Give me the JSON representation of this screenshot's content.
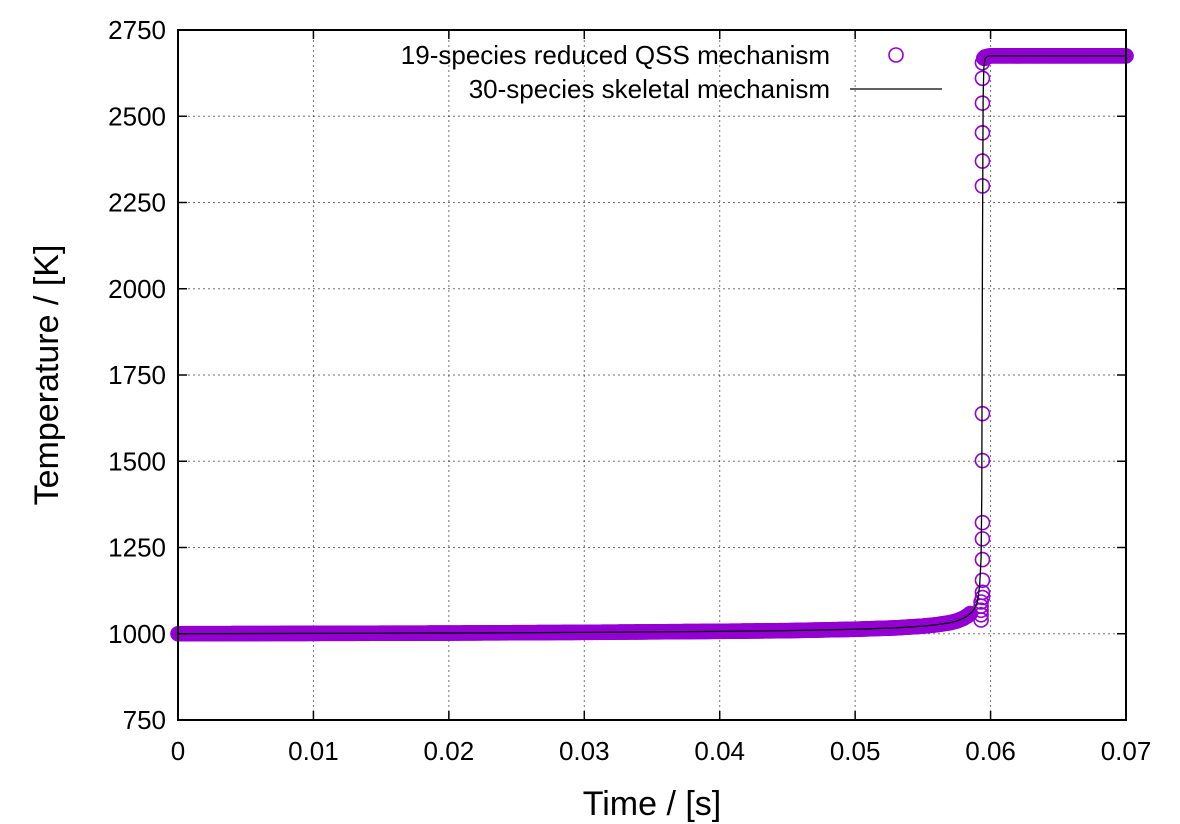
{
  "chart_data": {
    "type": "line",
    "xlabel": "Time / [s]",
    "ylabel": "Temperature / [K]",
    "xlim": [
      0,
      0.07
    ],
    "ylim": [
      750,
      2750
    ],
    "xticks": [
      0,
      0.01,
      0.02,
      0.03,
      0.04,
      0.05,
      0.06,
      0.07
    ],
    "xtick_labels": [
      "0",
      "0.01",
      "0.02",
      "0.03",
      "0.04",
      "0.05",
      "0.06",
      "0.07"
    ],
    "yticks": [
      750,
      1000,
      1250,
      1500,
      1750,
      2000,
      2250,
      2500,
      2750
    ],
    "ytick_labels": [
      "750",
      "1000",
      "1250",
      "1500",
      "1750",
      "2000",
      "2250",
      "2500",
      "2750"
    ],
    "grid": true,
    "legend_position": "top-right",
    "series": [
      {
        "name": "19-species reduced QSS mechanism",
        "style": "open-circle",
        "color": "#9400d3",
        "points": [
          [
            0.0593,
            1040
          ],
          [
            0.0593,
            1055
          ],
          [
            0.0593,
            1068
          ],
          [
            0.0593,
            1080
          ],
          [
            0.0593,
            1092
          ],
          [
            0.0594,
            1105
          ],
          [
            0.0594,
            1120
          ],
          [
            0.0594,
            1155
          ],
          [
            0.0594,
            1215
          ],
          [
            0.0594,
            1275
          ],
          [
            0.0594,
            1322
          ],
          [
            0.0594,
            1502
          ],
          [
            0.0594,
            1638
          ],
          [
            0.0594,
            2298
          ],
          [
            0.0594,
            2370
          ],
          [
            0.0594,
            2452
          ],
          [
            0.0594,
            2538
          ],
          [
            0.0594,
            2610
          ],
          [
            0.0594,
            2655
          ],
          [
            0.0595,
            2668
          ],
          [
            0.0596,
            2672
          ]
        ],
        "dense_segments": [
          {
            "x_start": 0.0,
            "x_end": 0.0585,
            "count": 700
          },
          {
            "x_start": 0.0596,
            "x_end": 0.07,
            "count": 220
          }
        ]
      },
      {
        "name": "30-species skeletal mechanism",
        "style": "line",
        "color": "#000000",
        "x": [
          0,
          0.01,
          0.02,
          0.03,
          0.04,
          0.045,
          0.05,
          0.053,
          0.055,
          0.056,
          0.057,
          0.0575,
          0.058,
          0.0583,
          0.0586,
          0.0588,
          0.059,
          0.0591,
          0.0592,
          0.0593,
          0.05935,
          0.0594,
          0.05945,
          0.0595,
          0.0596,
          0.0598,
          0.06,
          0.065,
          0.07
        ],
        "y": [
          1000,
          1001,
          1002,
          1004,
          1007,
          1009,
          1013,
          1017,
          1022,
          1026,
          1032,
          1037,
          1045,
          1052,
          1062,
          1072,
          1090,
          1110,
          1145,
          1220,
          1400,
          2100,
          2550,
          2640,
          2668,
          2674,
          2675,
          2675,
          2675
        ]
      }
    ]
  }
}
